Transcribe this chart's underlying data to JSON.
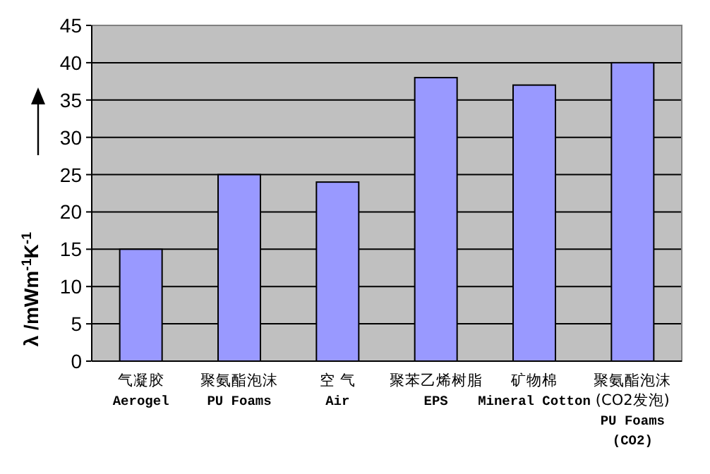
{
  "chart_data": {
    "type": "bar",
    "ylabel": "λ /mWm$^{-1}$K$^{-1}$",
    "categories": [
      "气凝胶\nAerogel",
      "聚氨酯泡沫\nPU Foams",
      "空 气\nAir",
      "聚苯乙烯树脂\nEPS",
      "矿物棉\nMineral Cotton",
      "聚氨酯泡沫\n(CO2发泡)\nPU Foams\n(CO2)"
    ],
    "values": [
      15,
      25,
      24,
      38,
      37,
      40
    ],
    "color": "#9999ff",
    "ylim": [
      0,
      45
    ],
    "yticks": [
      0,
      5,
      10,
      15,
      20,
      25,
      30,
      35,
      40,
      45
    ],
    "grid": "y"
  }
}
